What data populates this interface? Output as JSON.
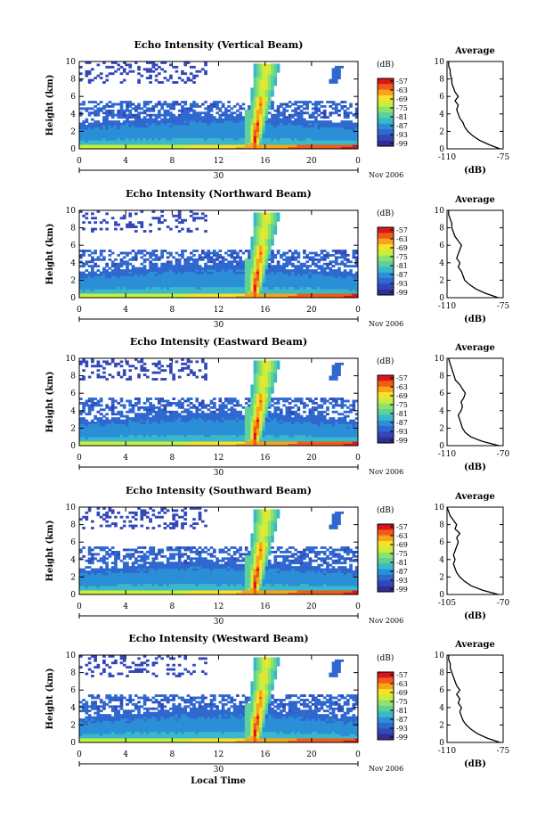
{
  "figure": {
    "xlabel": "Local Time",
    "date_label": "30",
    "month_label": "Nov 2006"
  },
  "colorbar": {
    "unit": "(dB)",
    "ticks": [
      "-57",
      "-63",
      "-69",
      "-75",
      "-81",
      "-87",
      "-93",
      "-99"
    ],
    "colors": [
      "#d6171b",
      "#f25b14",
      "#f8a31a",
      "#f8e02b",
      "#c7ef3c",
      "#8ee26b",
      "#5fd09a",
      "#3ab8c9",
      "#2b8fd7",
      "#2f68cf",
      "#3247b8",
      "#322d92"
    ]
  },
  "chart_data": [
    {
      "type": "heatmap",
      "title": "Echo Intensity (Vertical Beam)",
      "ylabel": "Height (km)",
      "xlim": [
        0,
        24
      ],
      "ylim": [
        0,
        10
      ],
      "xticks": [
        "0",
        "4",
        "8",
        "12",
        "16",
        "20",
        "0"
      ],
      "yticks": [
        "0",
        "2",
        "4",
        "6",
        "8",
        "10"
      ],
      "profile": {
        "title": "Average",
        "xlabel": "(dB)",
        "xlim": [
          -110,
          -75
        ],
        "xticks": [
          "-110",
          "-75"
        ],
        "yticks": [
          "0",
          "2",
          "4",
          "6",
          "8",
          "10"
        ],
        "heights": [
          0,
          0.5,
          1,
          1.5,
          2,
          2.5,
          3,
          3.5,
          4,
          4.5,
          5,
          5.5,
          6,
          6.5,
          7,
          7.5,
          8,
          8.5,
          9,
          9.5,
          10
        ],
        "values": [
          -77,
          -84,
          -90,
          -94,
          -97,
          -99,
          -100,
          -102,
          -103,
          -104,
          -103,
          -105,
          -103,
          -105,
          -106,
          -107,
          -107,
          -108,
          -108,
          -109,
          -109
        ]
      }
    },
    {
      "type": "heatmap",
      "title": "Echo Intensity (Northward Beam)",
      "ylabel": "Height (km)",
      "xlim": [
        0,
        24
      ],
      "ylim": [
        0,
        10
      ],
      "xticks": [
        "0",
        "4",
        "8",
        "12",
        "16",
        "20",
        "0"
      ],
      "yticks": [
        "0",
        "2",
        "4",
        "6",
        "8",
        "10"
      ],
      "profile": {
        "title": "Average",
        "xlabel": "(dB)",
        "xlim": [
          -110,
          -75
        ],
        "xticks": [
          "-110",
          "-75"
        ],
        "yticks": [
          "0",
          "2",
          "4",
          "6",
          "8",
          "10"
        ],
        "heights": [
          0,
          0.5,
          1,
          1.5,
          2,
          2.5,
          3,
          3.5,
          4,
          4.5,
          5,
          5.5,
          6,
          6.5,
          7,
          7.5,
          8,
          8.5,
          9,
          9.5,
          10
        ],
        "values": [
          -78,
          -86,
          -92,
          -96,
          -99,
          -100,
          -101,
          -103,
          -102,
          -104,
          -103,
          -102,
          -101,
          -103,
          -105,
          -106,
          -107,
          -107,
          -108,
          -109,
          -109
        ]
      }
    },
    {
      "type": "heatmap",
      "title": "Echo Intensity (Eastward Beam)",
      "ylabel": "Height (km)",
      "xlim": [
        0,
        24
      ],
      "ylim": [
        0,
        10
      ],
      "xticks": [
        "0",
        "4",
        "8",
        "12",
        "16",
        "20",
        "0"
      ],
      "yticks": [
        "0",
        "2",
        "4",
        "6",
        "8",
        "10"
      ],
      "profile": {
        "title": "Average",
        "xlabel": "(dB)",
        "xlim": [
          -110,
          -70
        ],
        "xticks": [
          "-110",
          "-70"
        ],
        "yticks": [
          "0",
          "2",
          "4",
          "6",
          "8",
          "10"
        ],
        "heights": [
          0,
          0.5,
          1,
          1.5,
          2,
          2.5,
          3,
          3.5,
          4,
          4.5,
          5,
          5.5,
          6,
          6.5,
          7,
          7.5,
          8,
          8.5,
          9,
          9.5,
          10
        ],
        "values": [
          -73,
          -85,
          -93,
          -97,
          -99,
          -100,
          -101,
          -102,
          -100,
          -99,
          -100,
          -98,
          -97,
          -99,
          -101,
          -104,
          -105,
          -106,
          -107,
          -108,
          -109
        ]
      }
    },
    {
      "type": "heatmap",
      "title": "Echo Intensity (Southward Beam)",
      "ylabel": "Height (km)",
      "xlim": [
        0,
        24
      ],
      "ylim": [
        0,
        10
      ],
      "xticks": [
        "0",
        "4",
        "8",
        "12",
        "16",
        "20",
        "0"
      ],
      "yticks": [
        "0",
        "2",
        "4",
        "6",
        "8",
        "10"
      ],
      "profile": {
        "title": "Average",
        "xlabel": "(dB)",
        "xlim": [
          -105,
          -70
        ],
        "xticks": [
          "-105",
          "-70"
        ],
        "yticks": [
          "0",
          "2",
          "4",
          "6",
          "8",
          "10"
        ],
        "heights": [
          0,
          0.5,
          1,
          1.5,
          2,
          2.5,
          3,
          3.5,
          4,
          4.5,
          5,
          5.5,
          6,
          6.5,
          7,
          7.5,
          8,
          8.5,
          9,
          9.5,
          10
        ],
        "values": [
          -73,
          -83,
          -90,
          -94,
          -97,
          -99,
          -100,
          -101,
          -100,
          -101,
          -100,
          -99,
          -98,
          -99,
          -97,
          -100,
          -99,
          -101,
          -103,
          -104,
          -105
        ]
      }
    },
    {
      "type": "heatmap",
      "title": "Echo Intensity (Westward Beam)",
      "ylabel": "Height (km)",
      "xlim": [
        0,
        24
      ],
      "ylim": [
        0,
        10
      ],
      "xticks": [
        "0",
        "4",
        "8",
        "12",
        "16",
        "20",
        "0"
      ],
      "yticks": [
        "0",
        "2",
        "4",
        "6",
        "8",
        "10"
      ],
      "profile": {
        "title": "Average",
        "xlabel": "(dB)",
        "xlim": [
          -110,
          -75
        ],
        "xticks": [
          "-110",
          "-75"
        ],
        "yticks": [
          "0",
          "2",
          "4",
          "6",
          "8",
          "10"
        ],
        "heights": [
          0,
          0.5,
          1,
          1.5,
          2,
          2.5,
          3,
          3.5,
          4,
          4.5,
          5,
          5.5,
          6,
          6.5,
          7,
          7.5,
          8,
          8.5,
          9,
          9.5,
          10
        ],
        "values": [
          -77,
          -85,
          -91,
          -95,
          -98,
          -100,
          -101,
          -102,
          -101,
          -103,
          -102,
          -104,
          -102,
          -104,
          -105,
          -106,
          -107,
          -108,
          -108,
          -109,
          -109
        ]
      }
    }
  ]
}
